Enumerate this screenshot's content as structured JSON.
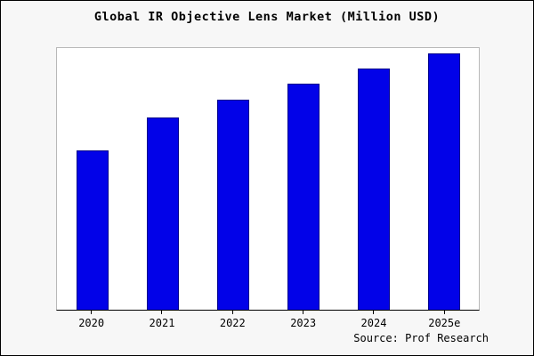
{
  "title": "Global IR Objective Lens Market (Million USD)",
  "source": "Source: Prof Research",
  "colors": {
    "bar_fill": "#0202e8",
    "bar_edge": "#00008b",
    "background": "#f7f7f7",
    "plot_background": "#ffffff",
    "axis": "#000000"
  },
  "chart_data": {
    "type": "bar",
    "categories": [
      "2020",
      "2021",
      "2022",
      "2023",
      "2024",
      "2025e"
    ],
    "values": [
      62,
      75,
      82,
      88,
      94,
      100
    ],
    "title": "Global IR Objective Lens Market (Million USD)",
    "xlabel": "",
    "ylabel": "",
    "ylim": [
      0,
      102
    ],
    "grid": false,
    "legend": false,
    "y_axis_labels_visible": false,
    "annotation": "Source: Prof Research"
  }
}
